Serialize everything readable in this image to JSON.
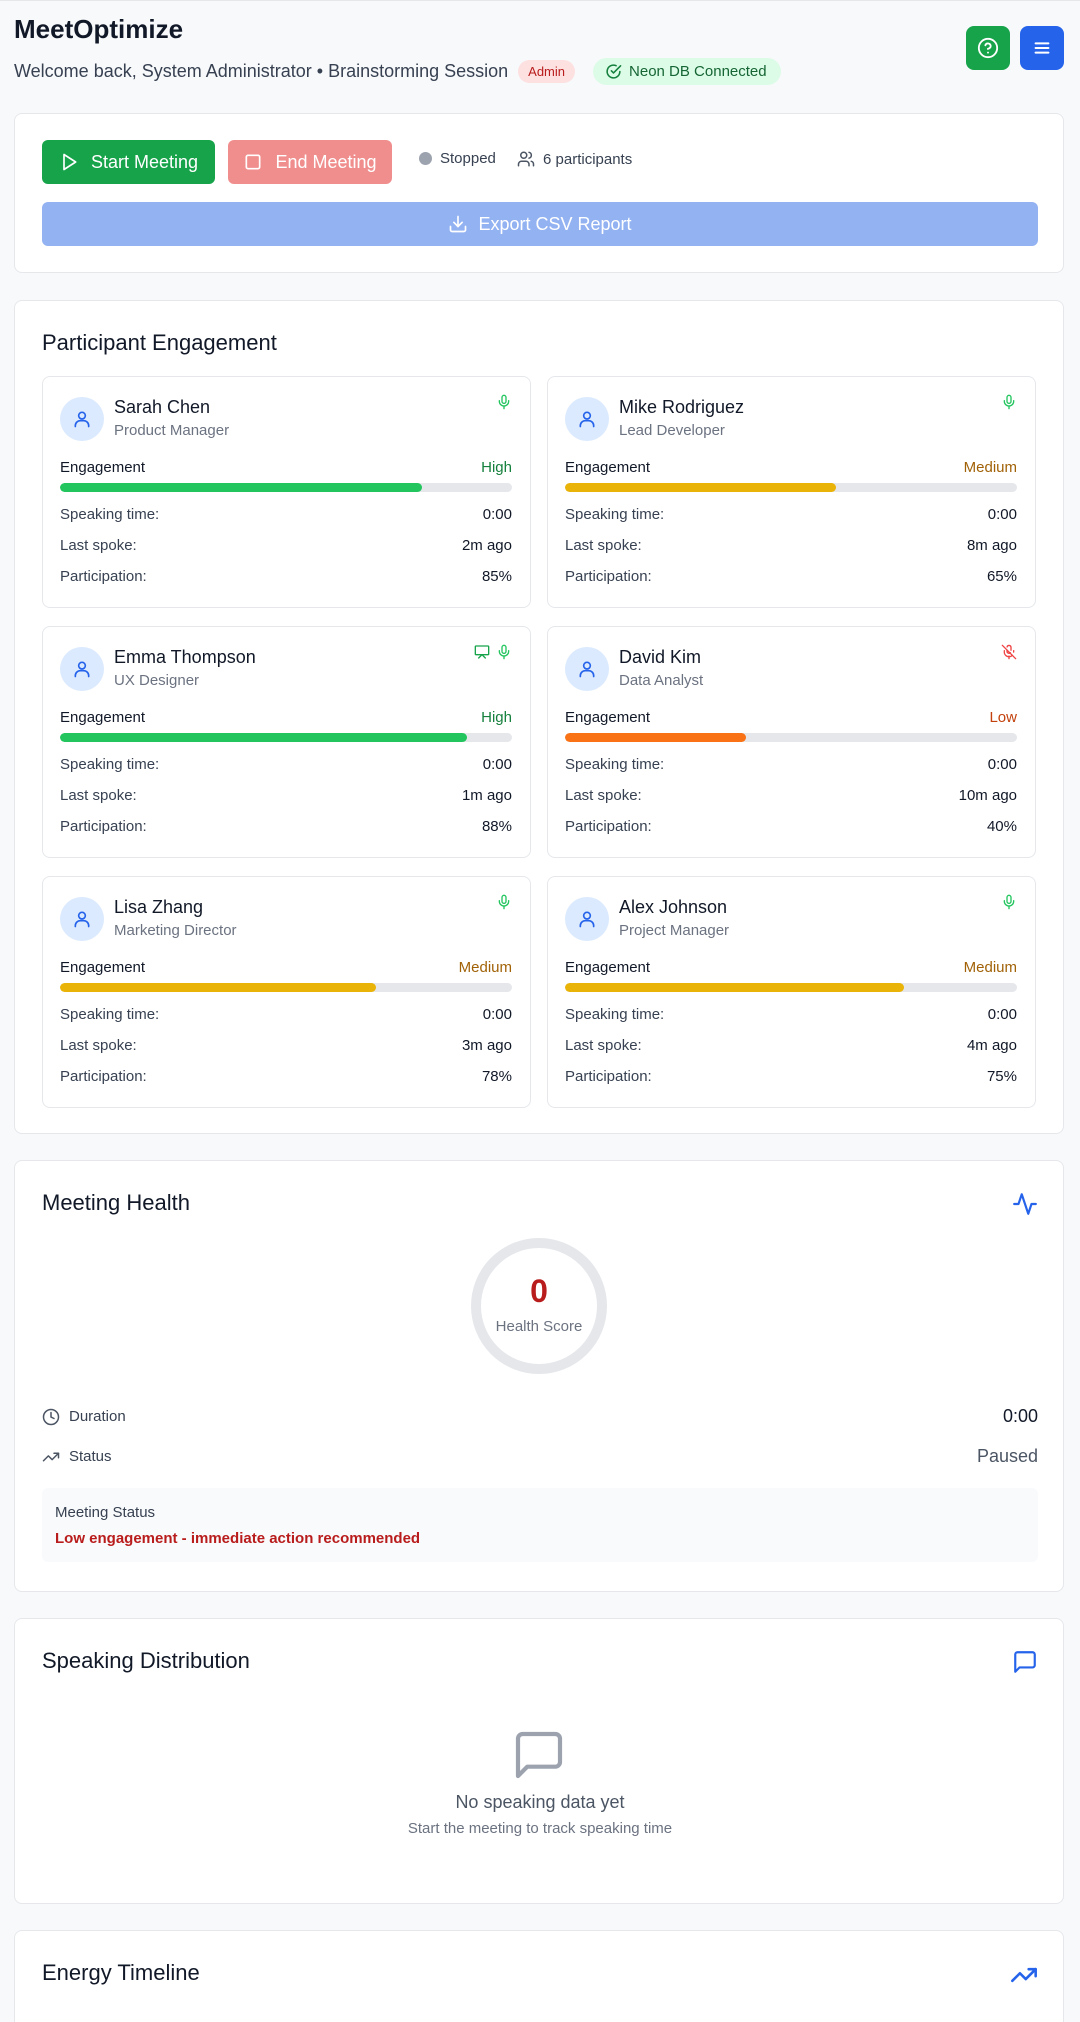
{
  "header": {
    "app_title": "MeetOptimize",
    "welcome": "Welcome back, System Administrator • Brainstorming Session",
    "role_badge": "Admin",
    "db_status": "Neon DB Connected",
    "icons": {
      "help": "help-circle-icon",
      "menu": "menu-icon"
    }
  },
  "controls": {
    "start_label": "Start Meeting",
    "end_label": "End Meeting",
    "status": "Stopped",
    "participants": "6 participants",
    "export_label": "Export CSV Report"
  },
  "engagement": {
    "title": "Participant Engagement",
    "engagement_label": "Engagement",
    "speaking_label": "Speaking time:",
    "last_spoke_label": "Last spoke:",
    "participation_label": "Participation:",
    "participants": [
      {
        "name": "Sarah Chen",
        "role": "Product Manager",
        "level": "High",
        "level_color": "#15803d",
        "bar_color": "#22c55e",
        "fill": 0.8,
        "speaking": "0:00",
        "last_spoke": "2m ago",
        "participation": "85%",
        "icons": [
          "mic-icon"
        ]
      },
      {
        "name": "Mike Rodriguez",
        "role": "Lead Developer",
        "level": "Medium",
        "level_color": "#a16207",
        "bar_color": "#eab308",
        "fill": 0.6,
        "speaking": "0:00",
        "last_spoke": "8m ago",
        "participation": "65%",
        "icons": [
          "mic-icon"
        ]
      },
      {
        "name": "Emma Thompson",
        "role": "UX Designer",
        "level": "High",
        "level_color": "#15803d",
        "bar_color": "#22c55e",
        "fill": 0.9,
        "speaking": "0:00",
        "last_spoke": "1m ago",
        "participation": "88%",
        "icons": [
          "presentation-icon",
          "mic-icon"
        ]
      },
      {
        "name": "David Kim",
        "role": "Data Analyst",
        "level": "Low",
        "level_color": "#c2410c",
        "bar_color": "#f97316",
        "fill": 0.4,
        "speaking": "0:00",
        "last_spoke": "10m ago",
        "participation": "40%",
        "icons": [
          "mic-off-icon"
        ]
      },
      {
        "name": "Lisa Zhang",
        "role": "Marketing Director",
        "level": "Medium",
        "level_color": "#a16207",
        "bar_color": "#eab308",
        "fill": 0.7,
        "speaking": "0:00",
        "last_spoke": "3m ago",
        "participation": "78%",
        "icons": [
          "mic-icon"
        ]
      },
      {
        "name": "Alex Johnson",
        "role": "Project Manager",
        "level": "Medium",
        "level_color": "#a16207",
        "bar_color": "#eab308",
        "fill": 0.75,
        "speaking": "0:00",
        "last_spoke": "4m ago",
        "participation": "75%",
        "icons": [
          "mic-icon"
        ]
      }
    ]
  },
  "health": {
    "title": "Meeting Health",
    "score": "0",
    "score_label": "Health Score",
    "duration_label": "Duration",
    "duration": "0:00",
    "status_label": "Status",
    "status": "Paused",
    "box_title": "Meeting Status",
    "box_message": "Low engagement - immediate action recommended"
  },
  "speaking": {
    "title": "Speaking Distribution",
    "empty_title": "No speaking data yet",
    "empty_sub": "Start the meeting to track speaking time"
  },
  "energy": {
    "title": "Energy Timeline"
  }
}
